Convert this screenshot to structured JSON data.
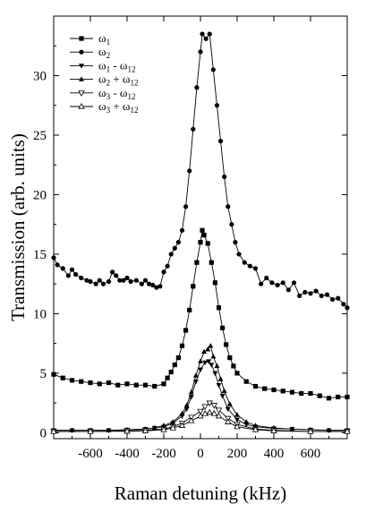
{
  "chart_data": {
    "type": "line",
    "xlabel": "Raman detuning (kHz)",
    "ylabel": "Transmission (arb. units)",
    "xlim": [
      -800,
      800
    ],
    "ylim": [
      -0.5,
      35
    ],
    "x_ticks": [
      -600,
      -400,
      -200,
      0,
      200,
      400,
      600
    ],
    "y_ticks": [
      0,
      5,
      10,
      15,
      20,
      25,
      30
    ],
    "legend_position": "top-left",
    "series": [
      {
        "name": "ω1",
        "name_base": "ω",
        "name_sub": "1",
        "name_op": "",
        "name_base2": "",
        "name_sub2": "",
        "marker": "filled-square",
        "points": [
          [
            -800,
            4.9
          ],
          [
            -750,
            4.6
          ],
          [
            -700,
            4.4
          ],
          [
            -650,
            4.3
          ],
          [
            -600,
            4.2
          ],
          [
            -550,
            4.1
          ],
          [
            -500,
            4.2
          ],
          [
            -450,
            4.0
          ],
          [
            -400,
            4.1
          ],
          [
            -350,
            4.0
          ],
          [
            -300,
            4.0
          ],
          [
            -250,
            3.9
          ],
          [
            -200,
            4.1
          ],
          [
            -180,
            4.6
          ],
          [
            -160,
            5.1
          ],
          [
            -140,
            5.7
          ],
          [
            -120,
            6.3
          ],
          [
            -100,
            7.3
          ],
          [
            -80,
            8.6
          ],
          [
            -60,
            10.3
          ],
          [
            -40,
            12.3
          ],
          [
            -20,
            14.3
          ],
          [
            0,
            16.0
          ],
          [
            10,
            17.0
          ],
          [
            20,
            16.6
          ],
          [
            40,
            15.9
          ],
          [
            60,
            14.3
          ],
          [
            80,
            12.6
          ],
          [
            100,
            10.5
          ],
          [
            120,
            8.8
          ],
          [
            140,
            7.4
          ],
          [
            160,
            6.3
          ],
          [
            180,
            5.6
          ],
          [
            200,
            5.0
          ],
          [
            250,
            4.3
          ],
          [
            300,
            3.9
          ],
          [
            350,
            3.7
          ],
          [
            400,
            3.6
          ],
          [
            450,
            3.5
          ],
          [
            500,
            3.4
          ],
          [
            550,
            3.3
          ],
          [
            600,
            3.3
          ],
          [
            650,
            3.1
          ],
          [
            700,
            2.9
          ],
          [
            750,
            3.0
          ],
          [
            800,
            3.0
          ]
        ]
      },
      {
        "name": "ω2",
        "name_base": "ω",
        "name_sub": "2",
        "name_op": "",
        "name_base2": "",
        "name_sub2": "",
        "marker": "filled-circle",
        "points": [
          [
            -800,
            14.7
          ],
          [
            -780,
            14.1
          ],
          [
            -750,
            13.8
          ],
          [
            -720,
            13.2
          ],
          [
            -700,
            13.7
          ],
          [
            -680,
            13.3
          ],
          [
            -650,
            13.0
          ],
          [
            -620,
            12.8
          ],
          [
            -600,
            12.7
          ],
          [
            -570,
            12.5
          ],
          [
            -550,
            12.8
          ],
          [
            -530,
            12.5
          ],
          [
            -500,
            12.7
          ],
          [
            -480,
            13.5
          ],
          [
            -460,
            13.2
          ],
          [
            -440,
            12.8
          ],
          [
            -420,
            12.8
          ],
          [
            -400,
            13.0
          ],
          [
            -380,
            12.7
          ],
          [
            -350,
            12.8
          ],
          [
            -320,
            12.5
          ],
          [
            -300,
            12.8
          ],
          [
            -280,
            12.5
          ],
          [
            -260,
            12.4
          ],
          [
            -240,
            12.2
          ],
          [
            -220,
            12.3
          ],
          [
            -200,
            13.5
          ],
          [
            -180,
            14.0
          ],
          [
            -160,
            15.0
          ],
          [
            -140,
            15.5
          ],
          [
            -120,
            16.0
          ],
          [
            -100,
            17.0
          ],
          [
            -80,
            19.0
          ],
          [
            -60,
            22.0
          ],
          [
            -40,
            25.5
          ],
          [
            -20,
            29.0
          ],
          [
            0,
            32.0
          ],
          [
            10,
            33.5
          ],
          [
            30,
            33.1
          ],
          [
            50,
            33.5
          ],
          [
            70,
            30.5
          ],
          [
            90,
            27.5
          ],
          [
            110,
            24.5
          ],
          [
            130,
            21.5
          ],
          [
            150,
            19.0
          ],
          [
            170,
            17.5
          ],
          [
            190,
            16.0
          ],
          [
            210,
            15.0
          ],
          [
            240,
            14.3
          ],
          [
            270,
            14.0
          ],
          [
            300,
            13.8
          ],
          [
            330,
            12.5
          ],
          [
            360,
            13.0
          ],
          [
            390,
            12.6
          ],
          [
            420,
            12.4
          ],
          [
            450,
            12.6
          ],
          [
            480,
            12.0
          ],
          [
            510,
            12.6
          ],
          [
            540,
            11.5
          ],
          [
            570,
            11.8
          ],
          [
            600,
            11.7
          ],
          [
            630,
            11.9
          ],
          [
            660,
            11.5
          ],
          [
            690,
            11.6
          ],
          [
            720,
            11.2
          ],
          [
            750,
            11.3
          ],
          [
            780,
            10.8
          ],
          [
            800,
            10.5
          ]
        ]
      },
      {
        "name": "ω1 - ω12",
        "name_base": "ω",
        "name_sub": "1",
        "name_op": " - ",
        "name_base2": "ω",
        "name_sub2": "12",
        "marker": "filled-triangle-down",
        "points": [
          [
            -800,
            0.2
          ],
          [
            -700,
            0.2
          ],
          [
            -600,
            0.2
          ],
          [
            -500,
            0.2
          ],
          [
            -400,
            0.25
          ],
          [
            -300,
            0.3
          ],
          [
            -250,
            0.4
          ],
          [
            -200,
            0.5
          ],
          [
            -150,
            0.8
          ],
          [
            -100,
            1.4
          ],
          [
            -75,
            2.0
          ],
          [
            -50,
            3.0
          ],
          [
            -25,
            4.3
          ],
          [
            0,
            5.3
          ],
          [
            25,
            5.9
          ],
          [
            45,
            6.0
          ],
          [
            60,
            5.7
          ],
          [
            80,
            5.0
          ],
          [
            100,
            4.0
          ],
          [
            120,
            3.1
          ],
          [
            150,
            2.0
          ],
          [
            200,
            1.1
          ],
          [
            250,
            0.7
          ],
          [
            300,
            0.5
          ],
          [
            400,
            0.35
          ],
          [
            500,
            0.3
          ],
          [
            600,
            0.25
          ],
          [
            700,
            0.2
          ],
          [
            800,
            0.2
          ]
        ]
      },
      {
        "name": "ω2 + ω12",
        "name_base": "ω",
        "name_sub": "2",
        "name_op": " + ",
        "name_base2": "ω",
        "name_sub2": "12",
        "marker": "filled-triangle-up",
        "points": [
          [
            -800,
            0.2
          ],
          [
            -700,
            0.2
          ],
          [
            -600,
            0.2
          ],
          [
            -500,
            0.2
          ],
          [
            -400,
            0.25
          ],
          [
            -300,
            0.3
          ],
          [
            -250,
            0.4
          ],
          [
            -200,
            0.6
          ],
          [
            -150,
            0.9
          ],
          [
            -100,
            1.6
          ],
          [
            -75,
            2.3
          ],
          [
            -50,
            3.4
          ],
          [
            -25,
            4.8
          ],
          [
            0,
            6.0
          ],
          [
            20,
            6.8
          ],
          [
            40,
            7.0
          ],
          [
            55,
            7.3
          ],
          [
            70,
            6.4
          ],
          [
            90,
            5.6
          ],
          [
            110,
            4.5
          ],
          [
            130,
            3.5
          ],
          [
            160,
            2.4
          ],
          [
            200,
            1.5
          ],
          [
            250,
            0.9
          ],
          [
            300,
            0.6
          ],
          [
            400,
            0.4
          ],
          [
            500,
            0.3
          ],
          [
            600,
            0.25
          ],
          [
            700,
            0.2
          ],
          [
            800,
            0.2
          ]
        ]
      },
      {
        "name": "ω3 - ω12",
        "name_base": "ω",
        "name_sub": "3",
        "name_op": " - ",
        "name_base2": "ω",
        "name_sub2": "12",
        "marker": "open-triangle-down",
        "points": [
          [
            -800,
            0.1
          ],
          [
            -600,
            0.1
          ],
          [
            -400,
            0.15
          ],
          [
            -300,
            0.2
          ],
          [
            -200,
            0.3
          ],
          [
            -150,
            0.5
          ],
          [
            -100,
            0.8
          ],
          [
            -50,
            1.3
          ],
          [
            0,
            1.8
          ],
          [
            25,
            2.2
          ],
          [
            50,
            2.5
          ],
          [
            75,
            2.3
          ],
          [
            100,
            1.9
          ],
          [
            150,
            1.2
          ],
          [
            200,
            0.7
          ],
          [
            300,
            0.3
          ],
          [
            400,
            0.2
          ],
          [
            600,
            0.1
          ],
          [
            800,
            0.1
          ]
        ]
      },
      {
        "name": "ω3 + ω12",
        "name_base": "ω",
        "name_sub": "3",
        "name_op": " + ",
        "name_base2": "ω",
        "name_sub2": "12",
        "marker": "open-triangle-up",
        "points": [
          [
            -800,
            0.1
          ],
          [
            -600,
            0.1
          ],
          [
            -400,
            0.12
          ],
          [
            -300,
            0.15
          ],
          [
            -200,
            0.25
          ],
          [
            -150,
            0.4
          ],
          [
            -100,
            0.6
          ],
          [
            -50,
            1.0
          ],
          [
            0,
            1.4
          ],
          [
            25,
            1.6
          ],
          [
            50,
            1.7
          ],
          [
            75,
            1.6
          ],
          [
            100,
            1.4
          ],
          [
            150,
            0.9
          ],
          [
            200,
            0.5
          ],
          [
            300,
            0.25
          ],
          [
            400,
            0.15
          ],
          [
            600,
            0.1
          ],
          [
            800,
            0.1
          ]
        ]
      }
    ]
  }
}
